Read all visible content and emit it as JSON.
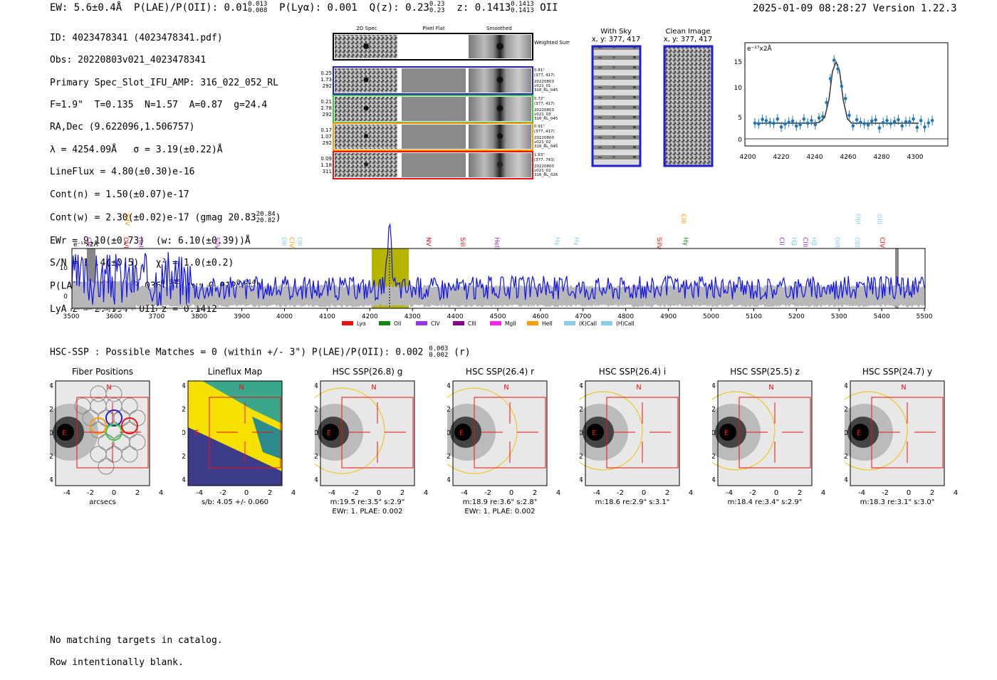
{
  "header": {
    "left": [
      "EW: 5.6±0.4Å",
      "P(LAE)/P(OII): 0.01",
      "P(Lyα): 0.001",
      "Q(z): 0.23",
      "z: 0.1413",
      "OII"
    ],
    "left_fracs": [
      [
        "0.013",
        "0.008"
      ],
      [
        "0.23",
        "0.23"
      ],
      [
        "0.1413",
        "0.1413"
      ]
    ],
    "right": "2025-01-09 08:28:27  Version 1.22.3"
  },
  "info": {
    "lines": [
      "ID: 4023478341 (4023478341.pdf)",
      "Obs: 20220803v021_4023478341",
      "Primary Spec_Slot_IFU_AMP: 316_022_052_RL",
      "F=1.9\"  T=0.135  N=1.57  A=0.87  g=24.4",
      "RA,Dec (9.622096,1.506757)",
      "λ = 4254.09Å   σ = 3.19(±0.22)Å",
      "LineFlux = 4.80(±0.30)e-16",
      "Cont(n) = 1.50(±0.07)e-17",
      "Cont(w) = 2.30(±0.02)e-17 (gmag 20.83",
      "EWr = 9.10(±0.73)  (w: 6.10(±0.39))Å",
      "S/N = 13.4(±0.5)   χ² = 1.0(±0.2)",
      "P(LAE)/P(OII): 0.036",
      "LyA z = 2.4994  OII z = 0.1412"
    ],
    "gmag_frac": [
      "20.84",
      "20.82"
    ],
    "plae_frac": [
      "0.045",
      "0.029"
    ],
    "plae_w": "(w: 0.012",
    "plae_w_frac": [
      "0.014",
      "0.01"
    ],
    "plae_close": ")"
  },
  "cutouts": {
    "col_titles": [
      "2D Spec",
      "Pixel Flat",
      "Smoothed"
    ],
    "weighted_sum": "Weighted Sum",
    "rows": [
      {
        "left": [
          "0.25",
          "1.73",
          "292"
        ],
        "right": [
          "0.81\"",
          "(377, 417)",
          "20220803",
          "v021_01",
          "316_RL_045"
        ],
        "color": "#1f1fcc"
      },
      {
        "left": [
          "0.21",
          "2.78",
          "292"
        ],
        "right": [
          "0.72\"",
          "(377, 417)",
          "20220803",
          "v021_03",
          "316_RL_045"
        ],
        "color": "#33cc33"
      },
      {
        "left": [
          "0.17",
          "1.07",
          "292"
        ],
        "right": [
          "0.91\"",
          "(377, 417)",
          "20220803",
          "v021_02",
          "316_RL_045"
        ],
        "color": "#ff9900"
      },
      {
        "left": [
          "0.09",
          "1.18",
          "311"
        ],
        "right": [
          "1.63\"",
          "(377, 743)",
          "20220803",
          "v021_02",
          "316_RL_026"
        ],
        "color": "#ee1111"
      }
    ]
  },
  "sky": {
    "with_sky": "With Sky",
    "with_sky_xy": "x, y: 377, 417",
    "clean": "Clean Image",
    "clean_xy": "x, y: 377, 417"
  },
  "zoom_plot": {
    "unit": "e⁻¹⁷x2Å",
    "x_ticks": [
      "4200",
      "4220",
      "4240",
      "4260",
      "4280",
      "4300"
    ],
    "y_ticks": [
      "0",
      "5",
      "10",
      "15"
    ]
  },
  "spectrum": {
    "unit": "e⁻¹⁷x2Å",
    "x_ticks": [
      "3500",
      "3600",
      "3700",
      "3800",
      "3900",
      "4000",
      "4100",
      "4200",
      "4300",
      "4400",
      "4500",
      "4600",
      "4700",
      "4800",
      "4900",
      "5000",
      "5100",
      "5200",
      "5300",
      "5400",
      "5500"
    ],
    "y_ticks": [
      "0",
      "10"
    ],
    "line_labels": [
      {
        "t": "CII",
        "c": "#cc33cc"
      },
      {
        "t": "SiIV",
        "c": "#ff9900"
      },
      {
        "t": "OVI",
        "c": "#ee1111"
      },
      {
        "t": "HeII",
        "c": "#9933cc"
      },
      {
        "t": "SiIV",
        "c": "#9933cc"
      },
      {
        "t": "OII",
        "c": "#88ccee"
      },
      {
        "t": "CIV",
        "c": "#ff9900"
      },
      {
        "t": "OII",
        "c": "#88ccee"
      },
      {
        "t": "NV",
        "c": "#ee1111"
      },
      {
        "t": "SiII",
        "c": "#ee1111"
      },
      {
        "t": "HeII",
        "c": "#9933cc"
      },
      {
        "t": "Hγ",
        "c": "#88ccee"
      },
      {
        "t": "Hγ",
        "c": "#88ccee"
      },
      {
        "t": "SiIV",
        "c": "#ee1111"
      },
      {
        "t": "CIII",
        "c": "#ff9900"
      },
      {
        "t": "Hγ",
        "c": "#119911"
      },
      {
        "t": "CII",
        "c": "#9933cc"
      },
      {
        "t": "Hβ",
        "c": "#88ccee"
      },
      {
        "t": "CIII",
        "c": "#9933cc"
      },
      {
        "t": "Hβ",
        "c": "#88ccee"
      },
      {
        "t": "OIII",
        "c": "#88ccee"
      },
      {
        "t": "OIII",
        "c": "#88ccee"
      },
      {
        "t": "OIII",
        "c": "#88ccee"
      },
      {
        "t": "CIV",
        "c": "#ee1111"
      },
      {
        "t": "OIII",
        "c": "#88ccee"
      }
    ],
    "legend": [
      {
        "label": "Lyα",
        "color": "#ee1111"
      },
      {
        "label": "OII",
        "color": "#118811"
      },
      {
        "label": "CIV",
        "color": "#9933ee"
      },
      {
        "label": "CIII",
        "color": "#880088"
      },
      {
        "label": "MgII",
        "color": "#ff22ee"
      },
      {
        "label": "HeII",
        "color": "#ff9900"
      },
      {
        "label": "(K)CaII",
        "color": "#88ccee"
      },
      {
        "label": "(H)CaII",
        "color": "#88ccee"
      }
    ]
  },
  "hsc": {
    "title": "HSC-SSP : Possible Matches = 0 (within +/- 3\")  P(LAE)/P(OII): 0.002",
    "frac": [
      "0.003",
      "0.002"
    ],
    "tail": "(r)",
    "panels": [
      {
        "title": "Fiber Positions",
        "l1": "arcsecs",
        "l2": ""
      },
      {
        "title": "Lineflux Map",
        "l1": "s/b: 4.05 +/- 0.060",
        "l2": ""
      },
      {
        "title": "HSC SSP(26.8) g",
        "l1": "m:19.5  re:3.5\"  s:2.9\"",
        "l2": "EWr: 1. PLAE: 0.002"
      },
      {
        "title": "HSC SSP(26.4) r",
        "l1": "m:18.9  re:3.6\"  s:2.8\"",
        "l2": "EWr: 1. PLAE: 0.002"
      },
      {
        "title": "HSC SSP(26.4) i",
        "l1": "m:18.6  re:2.9\"  s:3.1\"",
        "l2": ""
      },
      {
        "title": "HSC SSP(25.5) z",
        "l1": "m:18.4  re:3.4\"  s:2.9\"",
        "l2": ""
      },
      {
        "title": "HSC SSP(24.7) y",
        "l1": "m:18.3  re:3.1\"  s:3.0\"",
        "l2": ""
      }
    ],
    "ticks": [
      "-4",
      "-2",
      "0",
      "2",
      "4"
    ],
    "n_label": "N",
    "e_label": "E"
  },
  "footer": [
    "No matching targets in catalog.",
    "Row intentionally blank."
  ]
}
